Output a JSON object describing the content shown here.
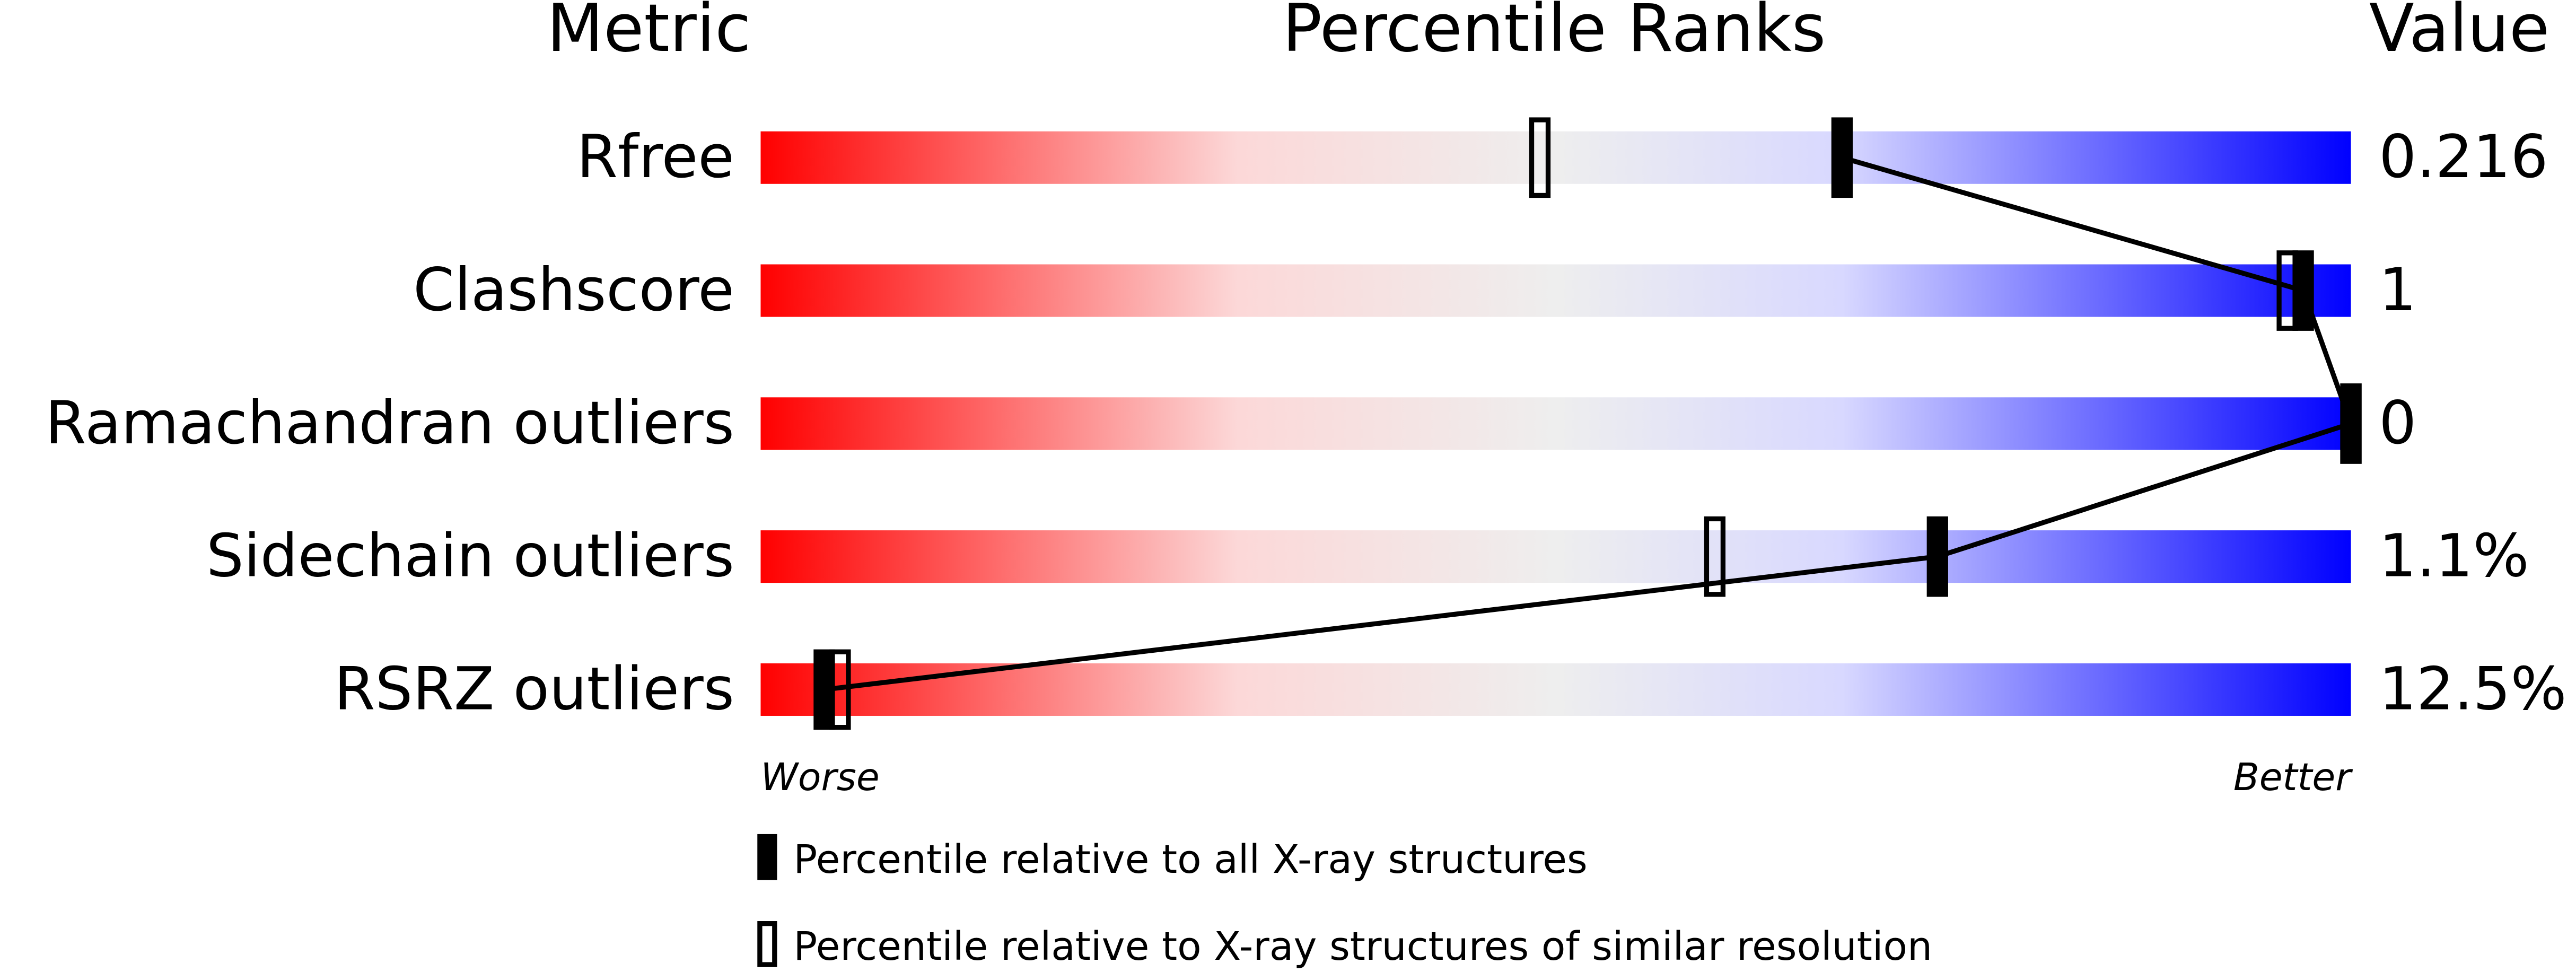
{
  "chart_data": {
    "type": "percentile-slider",
    "title": "Percentile Ranks",
    "category_header": "Metric",
    "value_header": "Value",
    "categories": [
      "Rfree",
      "Clashscore",
      "Ramachandran outliers",
      "Sidechain outliers",
      "RSRZ outliers"
    ],
    "metric_values": [
      "0.216",
      "1",
      "0",
      "1.1%",
      "12.5%"
    ],
    "xlim": [
      0,
      100
    ],
    "low_label": "Worse",
    "high_label": "Better",
    "series": [
      {
        "name": "Percentile relative to all X-ray structures",
        "color": "#000000",
        "values": [
          68,
          97,
          100,
          74,
          4
        ]
      },
      {
        "name": "Percentile relative to X-ray structures of similar resolution",
        "color": "#ffffff",
        "values": [
          49,
          96,
          100,
          60,
          5
        ]
      }
    ]
  }
}
